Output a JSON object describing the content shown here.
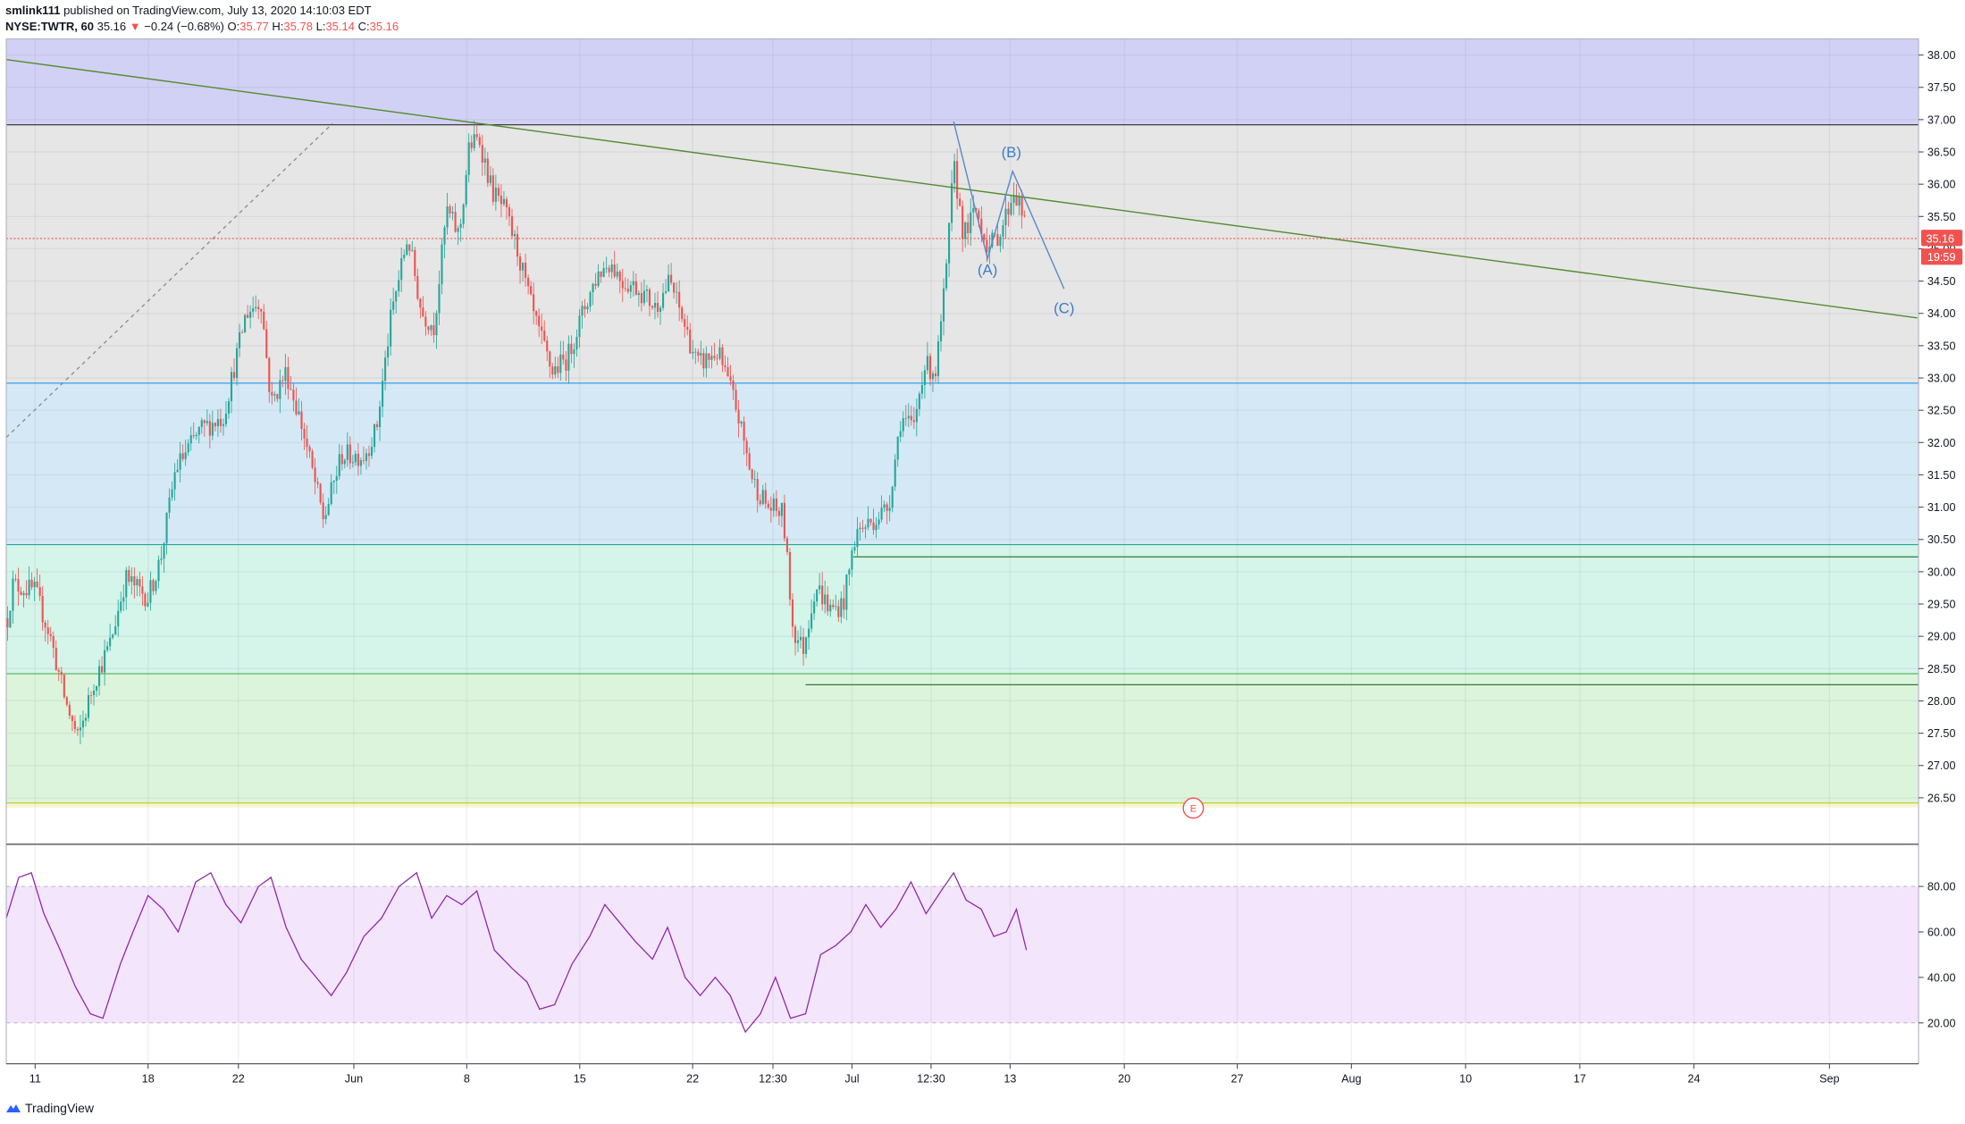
{
  "header": {
    "author": "smlink111",
    "published_text": " published on TradingView.com, July 13, 2020 14:10:03 EDT",
    "symbol": "NYSE:TWTR, 60",
    "last": "35.16",
    "change_arrow": "▼",
    "change": "−0.24 (−0.68%)",
    "o_label": "O:",
    "o_value": "35.77",
    "h_label": "H:",
    "h_value": "35.78",
    "l_label": "L:",
    "l_value": "35.14",
    "c_label": "C:",
    "c_value": "35.16"
  },
  "footer": {
    "brand": "TradingView",
    "logo_icon": "tradingview-logo-icon"
  },
  "colors": {
    "up": "#26a69a",
    "down": "#ef5350",
    "rsi_line": "#8e24aa",
    "rsi_band": "#f3e5fc",
    "trendline": "#558b2f",
    "wave": "#2962ff",
    "zone_top": "#d1d1f5",
    "zone_grey": "#e6e6e6",
    "zone_blue": "#d4e9f5",
    "zone_teal": "#d5f4ea",
    "zone_green": "#dcf4dc",
    "zone_yellow": "#f4f7d2"
  },
  "chart_data": [
    {
      "type": "candlestick",
      "title": "",
      "symbol": "NYSE:TWTR",
      "interval": "60",
      "ylim": [
        25.8,
        38.25
      ],
      "y_ticks": [
        "38.00",
        "37.50",
        "37.00",
        "36.50",
        "36.00",
        "35.50",
        "35.00",
        "34.50",
        "34.00",
        "33.50",
        "33.00",
        "32.50",
        "32.00",
        "31.50",
        "31.00",
        "30.50",
        "30.00",
        "29.50",
        "29.00",
        "28.50",
        "28.00",
        "27.50",
        "27.00",
        "26.50"
      ],
      "x_ticks": [
        "11",
        "18",
        "22",
        "Jun",
        "8",
        "15",
        "22",
        "12:30",
        "Jul",
        "12:30",
        "13",
        "20",
        "27",
        "Aug",
        "10",
        "17",
        "24",
        "Sep"
      ],
      "last_price_label": "35.16",
      "countdown_label": "19:59",
      "price_path": [
        {
          "x": 0,
          "y": 28.5
        },
        {
          "x": 10,
          "y": 29.8
        },
        {
          "x": 28,
          "y": 29.7
        },
        {
          "x": 40,
          "y": 29.0
        },
        {
          "x": 52,
          "y": 28.0
        },
        {
          "x": 62,
          "y": 27.4
        },
        {
          "x": 75,
          "y": 28.3
        },
        {
          "x": 88,
          "y": 28.9
        },
        {
          "x": 100,
          "y": 29.9
        },
        {
          "x": 118,
          "y": 29.6
        },
        {
          "x": 128,
          "y": 30.2
        },
        {
          "x": 140,
          "y": 31.6
        },
        {
          "x": 160,
          "y": 32.2
        },
        {
          "x": 178,
          "y": 32.4
        },
        {
          "x": 196,
          "y": 34.0
        },
        {
          "x": 208,
          "y": 34.2
        },
        {
          "x": 216,
          "y": 32.6
        },
        {
          "x": 228,
          "y": 33.1
        },
        {
          "x": 240,
          "y": 32.3
        },
        {
          "x": 258,
          "y": 30.8
        },
        {
          "x": 272,
          "y": 31.8
        },
        {
          "x": 290,
          "y": 31.8
        },
        {
          "x": 300,
          "y": 32.2
        },
        {
          "x": 312,
          "y": 34.0
        },
        {
          "x": 325,
          "y": 35.2
        },
        {
          "x": 336,
          "y": 34.0
        },
        {
          "x": 346,
          "y": 33.8
        },
        {
          "x": 356,
          "y": 35.6
        },
        {
          "x": 366,
          "y": 35.2
        },
        {
          "x": 374,
          "y": 36.6
        },
        {
          "x": 382,
          "y": 36.7
        },
        {
          "x": 392,
          "y": 35.9
        },
        {
          "x": 402,
          "y": 35.6
        },
        {
          "x": 412,
          "y": 35.0
        },
        {
          "x": 426,
          "y": 33.9
        },
        {
          "x": 440,
          "y": 33.1
        },
        {
          "x": 452,
          "y": 33.3
        },
        {
          "x": 466,
          "y": 34.1
        },
        {
          "x": 476,
          "y": 34.6
        },
        {
          "x": 486,
          "y": 34.8
        },
        {
          "x": 496,
          "y": 34.5
        },
        {
          "x": 508,
          "y": 34.4
        },
        {
          "x": 522,
          "y": 34.1
        },
        {
          "x": 534,
          "y": 34.5
        },
        {
          "x": 544,
          "y": 33.9
        },
        {
          "x": 556,
          "y": 33.2
        },
        {
          "x": 572,
          "y": 33.4
        },
        {
          "x": 586,
          "y": 32.6
        },
        {
          "x": 600,
          "y": 31.4
        },
        {
          "x": 612,
          "y": 31.0
        },
        {
          "x": 624,
          "y": 30.9
        },
        {
          "x": 632,
          "y": 29.1
        },
        {
          "x": 640,
          "y": 28.8
        },
        {
          "x": 650,
          "y": 29.8
        },
        {
          "x": 662,
          "y": 29.4
        },
        {
          "x": 672,
          "y": 29.5
        },
        {
          "x": 682,
          "y": 30.6
        },
        {
          "x": 696,
          "y": 30.8
        },
        {
          "x": 708,
          "y": 31.0
        },
        {
          "x": 718,
          "y": 32.4
        },
        {
          "x": 728,
          "y": 32.2
        },
        {
          "x": 736,
          "y": 33.2
        },
        {
          "x": 746,
          "y": 33.1
        },
        {
          "x": 754,
          "y": 34.6
        },
        {
          "x": 760,
          "y": 36.3
        },
        {
          "x": 768,
          "y": 35.2
        },
        {
          "x": 778,
          "y": 35.6
        },
        {
          "x": 788,
          "y": 35.0
        },
        {
          "x": 798,
          "y": 35.3
        },
        {
          "x": 808,
          "y": 35.9
        },
        {
          "x": 814,
          "y": 35.6
        },
        {
          "x": 818,
          "y": 35.2
        }
      ],
      "horizontal_lines": [
        {
          "price": 36.92,
          "color": "#2a2a2a"
        },
        {
          "price": 32.92,
          "color": "#2196f3"
        },
        {
          "price": 30.42,
          "color": "#26a69a"
        },
        {
          "price": 28.42,
          "color": "#4caf50"
        },
        {
          "price": 26.42,
          "color": "#c6c620"
        }
      ],
      "support_lines": [
        {
          "price": 30.23,
          "x_start": 680
        },
        {
          "price": 28.25,
          "x_start": 642
        }
      ],
      "zones": [
        {
          "from": 36.92,
          "to": 38.25,
          "color": "#d1d1f5"
        },
        {
          "from": 32.92,
          "to": 36.92,
          "color": "#e6e6e6"
        },
        {
          "from": 30.42,
          "to": 32.92,
          "color": "#d4e9f5"
        },
        {
          "from": 28.42,
          "to": 30.42,
          "color": "#d5f4ea"
        },
        {
          "from": 26.42,
          "to": 28.42,
          "color": "#dcf4dc"
        },
        {
          "from": 26.35,
          "to": 26.42,
          "color": "#f4f7d2"
        }
      ],
      "trendline": {
        "x1": 5,
        "y1": 37.93,
        "x2": 1528,
        "y2": 33.93
      },
      "dashed_line": {
        "x1": 5,
        "y1": 32.08,
        "x2": 265,
        "y2": 36.94
      },
      "elliott_wave": {
        "points": [
          {
            "x": 760,
            "y": 36.97
          },
          {
            "x": 787,
            "y": 34.85
          },
          {
            "x": 807,
            "y": 36.2
          },
          {
            "x": 848,
            "y": 34.38
          }
        ],
        "labels": [
          {
            "text": "(A)",
            "x": 787,
            "y": 34.6
          },
          {
            "text": "(B)",
            "x": 806,
            "y": 36.42
          },
          {
            "text": "(C)",
            "x": 848,
            "y": 34.0
          }
        ]
      },
      "event_marker": {
        "text": "E",
        "x": 951,
        "y": 26.35
      }
    },
    {
      "type": "line",
      "title": "",
      "ylim": [
        2,
        98
      ],
      "y_ticks": [
        "80.00",
        "60.00",
        "40.00",
        "20.00"
      ],
      "band": [
        20,
        80
      ],
      "rsi_path": [
        {
          "x": 5,
          "y": 66
        },
        {
          "x": 15,
          "y": 84
        },
        {
          "x": 25,
          "y": 86
        },
        {
          "x": 35,
          "y": 68
        },
        {
          "x": 48,
          "y": 52
        },
        {
          "x": 60,
          "y": 36
        },
        {
          "x": 72,
          "y": 24
        },
        {
          "x": 82,
          "y": 22
        },
        {
          "x": 96,
          "y": 46
        },
        {
          "x": 106,
          "y": 60
        },
        {
          "x": 118,
          "y": 76
        },
        {
          "x": 130,
          "y": 70
        },
        {
          "x": 142,
          "y": 60
        },
        {
          "x": 156,
          "y": 82
        },
        {
          "x": 168,
          "y": 86
        },
        {
          "x": 180,
          "y": 72
        },
        {
          "x": 192,
          "y": 64
        },
        {
          "x": 206,
          "y": 80
        },
        {
          "x": 216,
          "y": 84
        },
        {
          "x": 228,
          "y": 62
        },
        {
          "x": 240,
          "y": 48
        },
        {
          "x": 252,
          "y": 40
        },
        {
          "x": 264,
          "y": 32
        },
        {
          "x": 276,
          "y": 42
        },
        {
          "x": 290,
          "y": 58
        },
        {
          "x": 304,
          "y": 66
        },
        {
          "x": 318,
          "y": 80
        },
        {
          "x": 332,
          "y": 86
        },
        {
          "x": 344,
          "y": 66
        },
        {
          "x": 356,
          "y": 76
        },
        {
          "x": 368,
          "y": 72
        },
        {
          "x": 380,
          "y": 78
        },
        {
          "x": 394,
          "y": 52
        },
        {
          "x": 408,
          "y": 44
        },
        {
          "x": 420,
          "y": 38
        },
        {
          "x": 430,
          "y": 26
        },
        {
          "x": 442,
          "y": 28
        },
        {
          "x": 456,
          "y": 46
        },
        {
          "x": 470,
          "y": 58
        },
        {
          "x": 482,
          "y": 72
        },
        {
          "x": 494,
          "y": 64
        },
        {
          "x": 506,
          "y": 56
        },
        {
          "x": 520,
          "y": 48
        },
        {
          "x": 532,
          "y": 62
        },
        {
          "x": 546,
          "y": 40
        },
        {
          "x": 558,
          "y": 32
        },
        {
          "x": 570,
          "y": 40
        },
        {
          "x": 582,
          "y": 32
        },
        {
          "x": 594,
          "y": 16
        },
        {
          "x": 606,
          "y": 24
        },
        {
          "x": 618,
          "y": 40
        },
        {
          "x": 630,
          "y": 22
        },
        {
          "x": 642,
          "y": 24
        },
        {
          "x": 654,
          "y": 50
        },
        {
          "x": 666,
          "y": 54
        },
        {
          "x": 678,
          "y": 60
        },
        {
          "x": 690,
          "y": 72
        },
        {
          "x": 702,
          "y": 62
        },
        {
          "x": 714,
          "y": 70
        },
        {
          "x": 726,
          "y": 82
        },
        {
          "x": 738,
          "y": 68
        },
        {
          "x": 750,
          "y": 78
        },
        {
          "x": 760,
          "y": 86
        },
        {
          "x": 770,
          "y": 74
        },
        {
          "x": 782,
          "y": 70
        },
        {
          "x": 792,
          "y": 58
        },
        {
          "x": 802,
          "y": 60
        },
        {
          "x": 810,
          "y": 70
        },
        {
          "x": 818,
          "y": 52
        }
      ]
    }
  ]
}
